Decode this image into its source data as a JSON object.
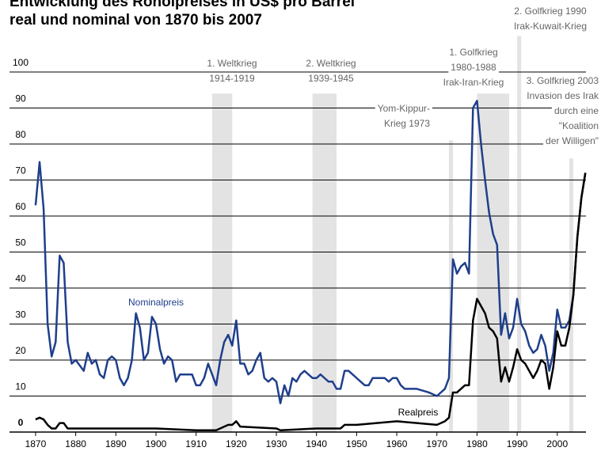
{
  "chart_data": {
    "type": "line",
    "title": "Entwicklung des Rohölpreises in US$ pro Barrel",
    "subtitle": "real und nominal von 1870 bis 2007",
    "xlim": [
      1863.5,
      2010.5
    ],
    "xticks": [
      1870,
      1880,
      1890,
      1900,
      1910,
      1920,
      1930,
      1940,
      1950,
      1960,
      1970,
      1980,
      1990,
      2000
    ],
    "ylim": [
      0,
      100
    ],
    "yticks": [
      0,
      10,
      20,
      30,
      40,
      50,
      60,
      70,
      80,
      90,
      100
    ],
    "grid": true,
    "series": [
      {
        "name": "Nominalpreis",
        "color": "#1f3f8c",
        "x": [
          1870,
          1871,
          1872,
          1873,
          1874,
          1875,
          1876,
          1877,
          1878,
          1879,
          1880,
          1882,
          1883,
          1884,
          1885,
          1886,
          1887,
          1888,
          1889,
          1890,
          1891,
          1892,
          1893,
          1894,
          1895,
          1896,
          1897,
          1898,
          1899,
          1900,
          1901,
          1902,
          1903,
          1904,
          1905,
          1906,
          1907,
          1908,
          1909,
          1910,
          1911,
          1912,
          1913,
          1914,
          1915,
          1916,
          1917,
          1918,
          1919,
          1920,
          1921,
          1922,
          1923,
          1924,
          1925,
          1926,
          1927,
          1928,
          1929,
          1930,
          1931,
          1932,
          1933,
          1934,
          1935,
          1936,
          1937,
          1938,
          1939,
          1940,
          1941,
          1942,
          1943,
          1944,
          1945,
          1946,
          1947,
          1948,
          1949,
          1950,
          1951,
          1952,
          1953,
          1954,
          1957,
          1958,
          1959,
          1960,
          1961,
          1962,
          1965,
          1968,
          1970,
          1971,
          1972,
          1973,
          1974,
          1975,
          1976,
          1977,
          1978,
          1979,
          1980,
          1981,
          1982,
          1983,
          1984,
          1985,
          1986,
          1987,
          1988,
          1989,
          1990,
          1991,
          1992,
          1993,
          1994,
          1995,
          1996,
          1997,
          1998,
          1999,
          2000,
          2001,
          2002,
          2003,
          2004,
          2005,
          2006,
          2007
        ],
        "values": [
          63,
          75,
          62,
          30,
          21,
          25,
          49,
          47,
          25,
          19,
          20,
          17,
          22,
          19,
          20,
          16,
          15,
          20,
          21,
          20,
          15,
          13,
          15,
          20,
          33,
          29,
          20,
          22,
          32,
          30,
          23,
          19,
          21,
          20,
          14,
          16,
          16,
          16,
          16,
          13,
          13,
          15,
          19,
          16,
          13,
          20,
          25,
          27,
          24,
          31,
          19,
          19,
          16,
          17,
          20,
          22,
          15,
          14,
          15,
          14,
          8,
          13,
          10,
          15,
          14,
          16,
          17,
          16,
          15,
          15,
          16,
          15,
          14,
          14,
          12,
          12,
          17,
          17,
          16,
          15,
          14,
          13,
          13,
          15,
          15,
          14,
          15,
          15,
          13,
          12,
          12,
          11,
          10,
          11,
          12,
          15,
          48,
          44,
          46,
          47,
          44,
          90,
          92,
          80,
          70,
          61,
          55,
          52,
          27,
          33,
          26,
          29,
          37,
          30,
          28,
          24,
          22,
          23,
          27,
          24,
          17,
          22,
          34,
          29,
          29,
          31,
          38,
          54,
          65,
          72
        ]
      },
      {
        "name": "Realpreis",
        "color": "#000000",
        "x": [
          1870,
          1871,
          1872,
          1873,
          1874,
          1875,
          1876,
          1877,
          1878,
          1880,
          1890,
          1900,
          1910,
          1915,
          1918,
          1919,
          1920,
          1921,
          1930,
          1931,
          1940,
          1946,
          1947,
          1950,
          1960,
          1970,
          1972,
          1973,
          1974,
          1975,
          1976,
          1977,
          1978,
          1979,
          1980,
          1981,
          1982,
          1983,
          1984,
          1985,
          1986,
          1987,
          1988,
          1989,
          1990,
          1991,
          1992,
          1993,
          1994,
          1995,
          1996,
          1997,
          1998,
          1999,
          2000,
          2001,
          2002,
          2003,
          2004,
          2005,
          2006,
          2007
        ],
        "values": [
          3.5,
          4,
          3.5,
          2,
          1,
          1,
          2.5,
          2.5,
          1,
          1,
          1,
          1,
          0.5,
          0.5,
          2,
          2,
          3,
          1.5,
          1,
          0.5,
          1,
          1,
          2,
          2,
          3,
          2,
          3,
          4,
          11,
          11,
          12,
          13,
          13,
          31,
          37,
          35,
          33,
          29,
          28,
          26,
          14,
          18,
          14,
          18,
          23,
          20,
          19,
          17,
          15,
          17,
          20,
          19,
          12,
          18,
          28,
          24,
          24,
          29,
          38,
          54,
          65,
          72
        ]
      }
    ],
    "periods": [
      {
        "label": [
          "1. Weltkrieg",
          "1914-1919"
        ],
        "start": 1914,
        "end": 1919,
        "top": 94
      },
      {
        "label": [
          "2. Weltkrieg",
          "1939-1945"
        ],
        "start": 1939,
        "end": 1945,
        "top": 94
      },
      {
        "label": [
          "Yom-Kippur-",
          "Krieg 1973"
        ],
        "start": 1973,
        "end": 1974,
        "top": 81
      },
      {
        "label": [
          "1. Golfkrieg",
          "1980-1988",
          "Irak-Iran-Krieg"
        ],
        "start": 1980,
        "end": 1988,
        "top": 94
      },
      {
        "label": [
          "2. Golfkrieg 1990",
          "Irak-Kuwait-Krieg"
        ],
        "start": 1990,
        "end": 1991,
        "top": 110
      },
      {
        "label": [
          "3. Golfkrieg 2003",
          "Invasion des Irak",
          "durch eine",
          "\"Koalition",
          "der Willigen\""
        ],
        "start": 2003,
        "end": 2004,
        "top": 76
      }
    ]
  }
}
